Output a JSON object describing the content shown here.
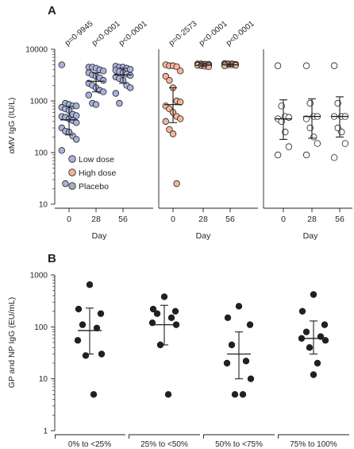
{
  "chart_data": [
    {
      "type": "scatter",
      "panel_label": "A",
      "ylabel": "αMV IgG (IU/L)",
      "xlabel": "Day",
      "yscale": "log",
      "ylim": [
        10,
        10000
      ],
      "yticks": [
        "10",
        "100",
        "1000",
        "10000"
      ],
      "legend_position": "bottom-left",
      "legend_swatch_colors": [
        "#a6b2db",
        "#f4b598",
        "#a8aeb8"
      ],
      "subpanels": [
        {
          "series": "Low dose",
          "color": "#a6b2db",
          "categories": [
            "0",
            "28",
            "56"
          ],
          "pvalues": [
            "p=0·9945",
            "p<0·0001",
            "p<0·0001"
          ],
          "points": [
            [
              5000,
              900,
              850,
              800,
              800,
              750,
              700,
              650,
              550,
              520,
              500,
              480,
              450,
              420,
              380,
              300,
              260,
              250,
              210,
              180,
              110,
              25
            ],
            [
              4500,
              4500,
              4300,
              4000,
              3800,
              3500,
              3200,
              3000,
              2800,
              2500,
              2200,
              2000,
              1800,
              1600,
              1500,
              1300,
              900,
              850
            ],
            [
              4700,
              4500,
              4500,
              4300,
              4100,
              3900,
              3700,
              3500,
              3300,
              3100,
              2900,
              2700,
              2500,
              2000,
              1800,
              1400,
              900
            ]
          ],
          "center": [
            430,
            2400,
            3200
          ],
          "error_low": [
            220,
            1500,
            2200
          ],
          "error_high": [
            780,
            3500,
            4300
          ]
        },
        {
          "series": "High dose",
          "color": "#f4b598",
          "categories": [
            "0",
            "28",
            "56"
          ],
          "pvalues": [
            "p=0·2573",
            "p<0·0001",
            "p<0·0001"
          ],
          "points": [
            [
              5000,
              4800,
              4800,
              4600,
              3800,
              3000,
              2500,
              1800,
              1000,
              950,
              800,
              700,
              600,
              500,
              450,
              400,
              280,
              230,
              25
            ],
            [
              5200,
              5200,
              5100,
              5100,
              5000,
              5000,
              5000,
              4900,
              4900,
              4800,
              4700,
              4600
            ],
            [
              5300,
              5200,
              5200,
              5100,
              5100,
              5000,
              5000,
              4900,
              4800
            ]
          ],
          "center": [
            850,
            4900,
            5000
          ],
          "error_low": [
            380,
            4600,
            4700
          ],
          "error_high": [
            1800,
            5200,
            5300
          ]
        },
        {
          "series": "Placebo",
          "color": "#ffffff",
          "categories": [
            "0",
            "28",
            "56"
          ],
          "pvalues": [],
          "points": [
            [
              4800,
              800,
              500,
              480,
              450,
              400,
              250,
              130,
              90
            ],
            [
              4800,
              900,
              500,
              500,
              450,
              300,
              200,
              150,
              90
            ],
            [
              4800,
              900,
              500,
              500,
              500,
              300,
              250,
              150,
              80
            ]
          ],
          "center": [
            450,
            500,
            500
          ],
          "error_low": [
            180,
            190,
            200
          ],
          "error_high": [
            1050,
            1100,
            1200
          ]
        }
      ],
      "legend": [
        "Low dose",
        "High dose",
        "Placebo"
      ]
    },
    {
      "type": "scatter",
      "panel_label": "B",
      "ylabel": "GP and NP IgG (EU/mL)",
      "yscale": "log",
      "ylim": [
        1,
        1000
      ],
      "yticks": [
        "1",
        "10",
        "100",
        "1000"
      ],
      "categories": [
        "0% to <25%",
        "25% to <50%",
        "50% to <75%",
        "75% to 100%"
      ],
      "points": [
        [
          650,
          220,
          180,
          110,
          95,
          55,
          30,
          28,
          5
        ],
        [
          380,
          220,
          200,
          180,
          150,
          120,
          110,
          45,
          5
        ],
        [
          250,
          150,
          110,
          45,
          22,
          20,
          10,
          5,
          5
        ],
        [
          420,
          200,
          110,
          80,
          65,
          60,
          55,
          40,
          20,
          12
        ]
      ],
      "center": [
        85,
        110,
        30,
        60
      ],
      "error_low": [
        30,
        45,
        10,
        30
      ],
      "error_high": [
        230,
        260,
        80,
        130
      ]
    }
  ]
}
